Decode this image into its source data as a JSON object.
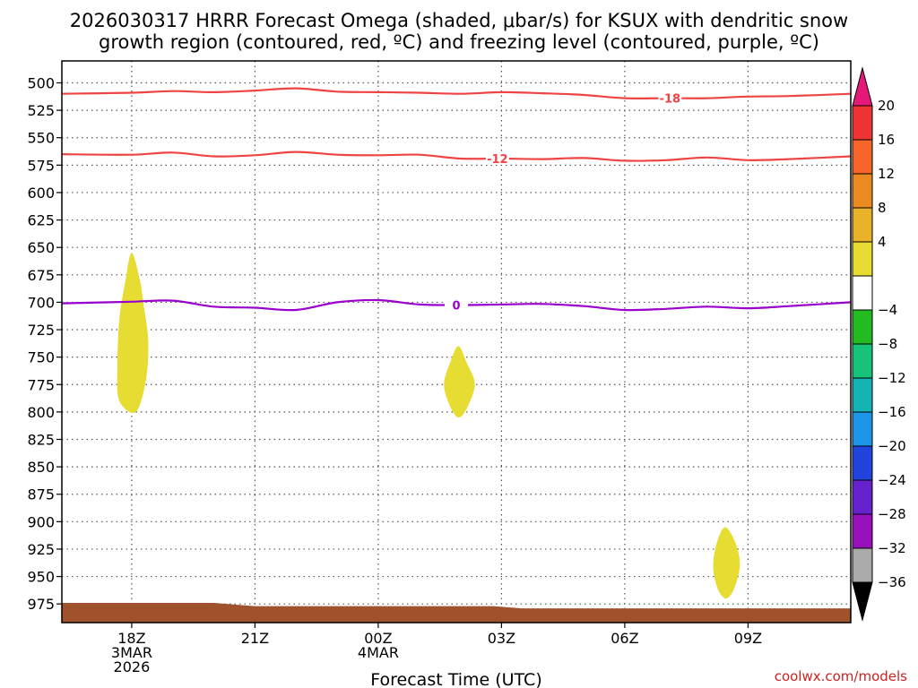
{
  "chart_data": {
    "type": "contour",
    "title_line1": "2026030317 HRRR Forecast Omega (shaded, μbar/s) for KSUX with dendritic snow",
    "title_line2": "growth region (contoured, red, ºC) and freezing level (contoured, purple, ºC)",
    "xlabel": "Forecast Time (UTC)",
    "credit": "coolwx.com/models",
    "x_range_hours": [
      -1.7,
      17.5
    ],
    "y_range_hpa": [
      480,
      992
    ],
    "y_ticks": [
      500,
      525,
      550,
      575,
      600,
      625,
      650,
      675,
      700,
      725,
      750,
      775,
      800,
      825,
      850,
      875,
      900,
      925,
      950,
      975
    ],
    "x_ticks": [
      {
        "h": 0,
        "line1": "18Z",
        "line2": "3MAR",
        "line3": "2026"
      },
      {
        "h": 3,
        "line1": "21Z",
        "line2": "",
        "line3": ""
      },
      {
        "h": 6,
        "line1": "00Z",
        "line2": "4MAR",
        "line3": ""
      },
      {
        "h": 9,
        "line1": "03Z",
        "line2": "",
        "line3": ""
      },
      {
        "h": 12,
        "line1": "06Z",
        "line2": "",
        "line3": ""
      },
      {
        "h": 15,
        "line1": "09Z",
        "line2": "",
        "line3": ""
      }
    ],
    "contours": [
      {
        "name": "dgz-top",
        "label": "-18",
        "color": "#ee4444",
        "label_at_h": 13.1,
        "points": [
          [
            -1.7,
            510
          ],
          [
            0,
            509
          ],
          [
            1,
            507.5
          ],
          [
            2,
            508.5
          ],
          [
            3,
            507
          ],
          [
            4,
            505
          ],
          [
            5,
            508
          ],
          [
            6,
            508.5
          ],
          [
            7,
            509
          ],
          [
            8,
            510
          ],
          [
            9,
            508.5
          ],
          [
            10,
            509.5
          ],
          [
            11,
            511
          ],
          [
            12,
            514
          ],
          [
            13,
            514
          ],
          [
            14,
            514
          ],
          [
            15,
            512.5
          ],
          [
            16,
            512
          ],
          [
            17.5,
            510
          ]
        ]
      },
      {
        "name": "dgz-bottom",
        "label": "-12",
        "color": "#ee4444",
        "label_at_h": 8.9,
        "points": [
          [
            -1.7,
            565
          ],
          [
            0,
            565.5
          ],
          [
            1,
            563.5
          ],
          [
            2,
            567
          ],
          [
            3,
            566
          ],
          [
            4,
            563
          ],
          [
            5,
            565.5
          ],
          [
            6,
            566
          ],
          [
            7,
            565.5
          ],
          [
            8,
            569
          ],
          [
            9,
            569
          ],
          [
            10,
            569.5
          ],
          [
            11,
            568.5
          ],
          [
            12,
            571
          ],
          [
            13,
            570.5
          ],
          [
            14,
            568
          ],
          [
            15,
            570.5
          ],
          [
            16,
            569.5
          ],
          [
            17.5,
            567
          ]
        ]
      },
      {
        "name": "freezing-level",
        "label": "0",
        "color": "#9900cc",
        "label_at_h": 7.9,
        "points": [
          [
            -1.7,
            701
          ],
          [
            0,
            699.5
          ],
          [
            1,
            698.5
          ],
          [
            2,
            704
          ],
          [
            3,
            705
          ],
          [
            4,
            707
          ],
          [
            5,
            700
          ],
          [
            6,
            698
          ],
          [
            7,
            702
          ],
          [
            8,
            702.5
          ],
          [
            9,
            702
          ],
          [
            10,
            701.5
          ],
          [
            11,
            703.5
          ],
          [
            12,
            707
          ],
          [
            13,
            706
          ],
          [
            14,
            704
          ],
          [
            15,
            705.5
          ],
          [
            16,
            703.5
          ],
          [
            17.5,
            700
          ]
        ]
      }
    ],
    "shaded_regions": [
      {
        "name": "omega-4-8-area-1",
        "category": "4 to 8",
        "color": "#e6dc32",
        "points": [
          [
            0.0,
            655
          ],
          [
            0.2,
            680
          ],
          [
            0.3,
            705
          ],
          [
            0.4,
            735
          ],
          [
            0.35,
            770
          ],
          [
            0.1,
            800
          ],
          [
            -0.3,
            790
          ],
          [
            -0.35,
            760
          ],
          [
            -0.3,
            715
          ],
          [
            -0.15,
            680
          ]
        ]
      },
      {
        "name": "omega-4-8-area-2",
        "category": "4 to 8",
        "color": "#e6dc32",
        "points": [
          [
            7.95,
            740
          ],
          [
            8.15,
            755
          ],
          [
            8.35,
            775
          ],
          [
            8.15,
            797
          ],
          [
            7.95,
            805
          ],
          [
            7.75,
            795
          ],
          [
            7.6,
            775
          ],
          [
            7.75,
            755
          ]
        ]
      },
      {
        "name": "omega-4-8-area-3",
        "category": "4 to 8",
        "color": "#e6dc32",
        "points": [
          [
            14.45,
            905
          ],
          [
            14.7,
            920
          ],
          [
            14.8,
            940
          ],
          [
            14.65,
            962
          ],
          [
            14.45,
            970
          ],
          [
            14.25,
            960
          ],
          [
            14.15,
            940
          ],
          [
            14.25,
            918
          ]
        ]
      }
    ],
    "terrain": {
      "name": "ground",
      "color": "#a0522d",
      "points": [
        [
          -1.7,
          974
        ],
        [
          2,
          974
        ],
        [
          3,
          977
        ],
        [
          6,
          977
        ],
        [
          8.8,
          977
        ],
        [
          9.5,
          979
        ],
        [
          17.5,
          979
        ]
      ]
    },
    "colorbar": {
      "top_arrow_color": "#e6197a",
      "bottom_arrow_color": "#000000",
      "bins": [
        {
          "color": "#ee3333"
        },
        {
          "color": "#f5652a"
        },
        {
          "color": "#ec8a22"
        },
        {
          "color": "#e8b22b"
        },
        {
          "color": "#e6dc32"
        },
        {
          "color": "#ffffff"
        },
        {
          "color": "#22bb22"
        },
        {
          "color": "#17c27a"
        },
        {
          "color": "#16b3b3"
        },
        {
          "color": "#1d95e6"
        },
        {
          "color": "#2244dd"
        },
        {
          "color": "#6622cc"
        },
        {
          "color": "#9911bb"
        },
        {
          "color": "#aaaaaa"
        }
      ],
      "labels": [
        "20",
        "16",
        "12",
        "8",
        "4",
        "-4",
        "-8",
        "-12",
        "-16",
        "-20",
        "-24",
        "-28",
        "-32",
        "-36"
      ]
    }
  }
}
